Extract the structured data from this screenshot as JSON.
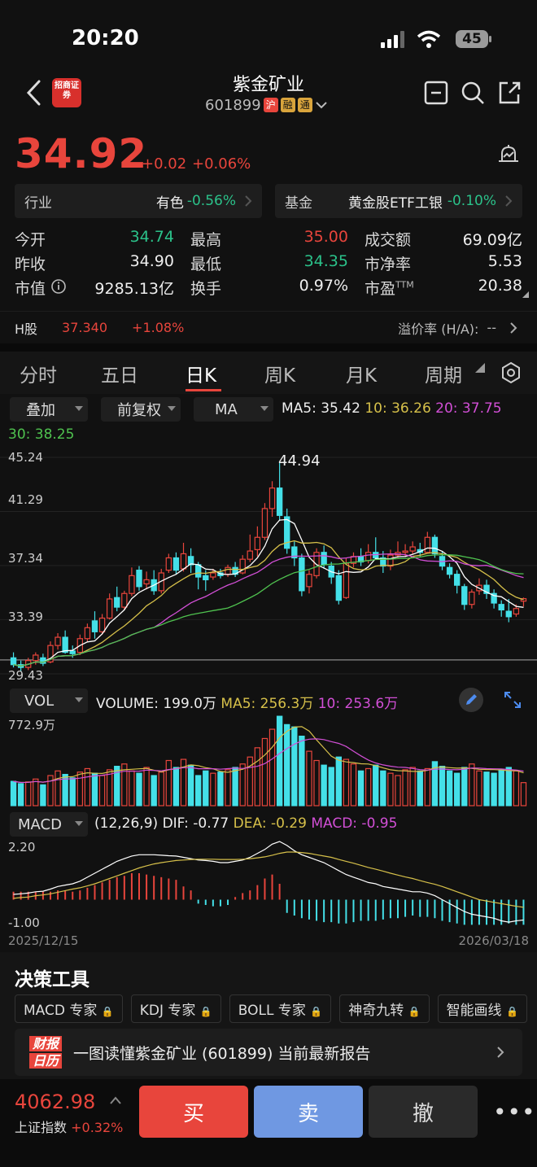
{
  "status_bar": {
    "time": "20:20",
    "battery": "45"
  },
  "nav": {
    "broker_logo": "招商证券",
    "stock_name": "紫金矿业",
    "stock_code": "601899",
    "tags": [
      "沪",
      "融",
      "通"
    ]
  },
  "quote": {
    "price": "34.92",
    "change": "+0.02",
    "change_pct": "+0.06%"
  },
  "industry": {
    "label": "行业",
    "name": "有色",
    "pct": "-0.56%"
  },
  "fund": {
    "label": "基金",
    "name": "黄金股ETF工银",
    "pct": "-0.10%"
  },
  "stats": {
    "open_label": "今开",
    "open": "34.74",
    "high_label": "最高",
    "high": "35.00",
    "turnover_amt_label": "成交额",
    "turnover_amt": "69.09亿",
    "prev_label": "昨收",
    "prev": "34.90",
    "low_label": "最低",
    "low": "34.35",
    "pb_label": "市净率",
    "pb": "5.53",
    "mcap_label": "市值",
    "mcap": "9285.13亿",
    "turnover_label": "换手",
    "turnover": "0.97%",
    "pe_label": "市盈",
    "pe_sup": "TTM",
    "pe": "20.38"
  },
  "hshare": {
    "label": "H股",
    "price": "37.340",
    "pct": "+1.08%",
    "premium_label": "溢价率 (H/A):",
    "premium": "--"
  },
  "tabs": [
    "分时",
    "五日",
    "日K",
    "周K",
    "月K",
    "周期"
  ],
  "controls": {
    "overlay": "叠加",
    "adjust": "前复权",
    "indicator": "MA"
  },
  "ma_legend": {
    "ma5": "MA5: 35.42",
    "ma10": "10: 36.26",
    "ma20": "20: 37.75",
    "ma30": "30: 38.25"
  },
  "price_axis": [
    "45.24",
    "41.29",
    "37.34",
    "33.39",
    "29.43"
  ],
  "peak_label": "44.94",
  "vol_panel": {
    "selector": "VOL",
    "volume": "VOLUME: 199.0万",
    "ma5": "MA5: 256.3万",
    "ma10": "10: 253.6万",
    "axis_max": "772.9万"
  },
  "macd_panel": {
    "selector": "MACD",
    "params": "(12,26,9)",
    "dif": "DIF: -0.77",
    "dea": "DEA: -0.29",
    "macd": "MACD: -0.95",
    "axis_top": "2.20",
    "axis_bottom": "-1.00"
  },
  "date_range": {
    "start": "2025/12/15",
    "end": "2026/03/18"
  },
  "tools": {
    "title": "决策工具",
    "items": [
      "MACD 专家",
      "KDJ 专家",
      "BOLL 专家",
      "神奇九转",
      "智能画线"
    ]
  },
  "report_banner": {
    "badge_line1": "财报",
    "badge_line2": "日历",
    "text": "一图读懂紫金矿业 (601899) 当前最新报告"
  },
  "index": {
    "value": "4062.98",
    "name": "上证指数",
    "pct": "+0.32%"
  },
  "actions": {
    "buy": "买",
    "sell": "卖",
    "cancel": "撤"
  },
  "colors": {
    "up": "#e8453c",
    "down": "#44e0e8",
    "ma5": "#ffffff",
    "ma10": "#d6c04a",
    "ma20": "#d24fd6",
    "ma30": "#4fc24f"
  },
  "chart_data": {
    "type": "candlestick",
    "ylim": [
      29.43,
      45.24
    ],
    "x_start": "2025/12/15",
    "x_end": "2026/03/18",
    "candles": [
      [
        30.6,
        30.1,
        31.0,
        29.9
      ],
      [
        30.1,
        29.9,
        30.4,
        29.6
      ],
      [
        29.9,
        30.4,
        30.6,
        29.7
      ],
      [
        30.4,
        30.8,
        31.0,
        30.1
      ],
      [
        30.6,
        30.2,
        30.9,
        30.0
      ],
      [
        30.3,
        31.5,
        31.8,
        30.2
      ],
      [
        31.5,
        32.1,
        32.4,
        31.2
      ],
      [
        32.1,
        31.0,
        32.6,
        30.9
      ],
      [
        31.1,
        30.9,
        31.5,
        30.6
      ],
      [
        31.0,
        32.0,
        32.3,
        30.8
      ],
      [
        32.0,
        32.8,
        33.1,
        31.8
      ],
      [
        33.3,
        32.5,
        34.0,
        32.0
      ],
      [
        32.5,
        33.5,
        33.8,
        32.3
      ],
      [
        33.5,
        34.9,
        35.3,
        33.4
      ],
      [
        35.0,
        34.3,
        35.8,
        34.0
      ],
      [
        34.3,
        35.3,
        35.5,
        34.1
      ],
      [
        35.3,
        36.6,
        37.2,
        35.1
      ],
      [
        37.0,
        35.8,
        37.3,
        35.5
      ],
      [
        36.0,
        36.3,
        36.9,
        35.6
      ],
      [
        36.3,
        35.5,
        37.0,
        35.2
      ],
      [
        35.5,
        36.8,
        37.1,
        35.3
      ],
      [
        37.0,
        37.9,
        38.2,
        36.8
      ],
      [
        37.9,
        37.0,
        38.3,
        36.7
      ],
      [
        37.1,
        38.2,
        39.0,
        36.9
      ],
      [
        38.0,
        37.4,
        38.6,
        36.8
      ],
      [
        37.4,
        36.5,
        37.6,
        35.6
      ],
      [
        36.6,
        36.3,
        37.0,
        35.5
      ],
      [
        36.5,
        36.8,
        37.1,
        36.3
      ],
      [
        36.8,
        36.6,
        37.1,
        36.4
      ],
      [
        36.7,
        37.2,
        37.4,
        36.5
      ],
      [
        37.2,
        36.7,
        37.6,
        36.5
      ],
      [
        36.8,
        37.8,
        38.1,
        36.7
      ],
      [
        37.8,
        38.4,
        39.6,
        37.6
      ],
      [
        38.5,
        39.4,
        40.2,
        38.0
      ],
      [
        39.4,
        41.5,
        41.9,
        39.2
      ],
      [
        41.5,
        43.0,
        43.5,
        40.9
      ],
      [
        43.0,
        41.0,
        44.94,
        40.6
      ],
      [
        40.9,
        38.6,
        41.5,
        38.2
      ],
      [
        38.7,
        37.9,
        39.1,
        37.3
      ],
      [
        37.9,
        35.5,
        38.2,
        35.1
      ],
      [
        35.8,
        36.7,
        37.0,
        35.3
      ],
      [
        36.6,
        38.3,
        38.6,
        36.4
      ],
      [
        38.3,
        37.4,
        38.8,
        37.1
      ],
      [
        37.3,
        36.5,
        37.6,
        36.0
      ],
      [
        36.6,
        34.8,
        37.0,
        34.5
      ],
      [
        35.0,
        37.5,
        37.9,
        34.9
      ],
      [
        37.5,
        38.0,
        38.3,
        37.2
      ],
      [
        38.0,
        37.6,
        38.6,
        37.3
      ],
      [
        37.7,
        38.3,
        38.9,
        37.5
      ],
      [
        38.3,
        37.9,
        39.4,
        37.8
      ],
      [
        37.9,
        37.3,
        38.4,
        36.8
      ],
      [
        37.3,
        38.1,
        38.5,
        37.0
      ],
      [
        38.1,
        38.3,
        39.1,
        37.9
      ],
      [
        38.3,
        38.4,
        38.9,
        38.0
      ],
      [
        38.4,
        38.7,
        39.1,
        38.2
      ],
      [
        38.5,
        38.3,
        39.0,
        38.0
      ],
      [
        38.3,
        39.4,
        39.8,
        38.2
      ],
      [
        39.4,
        38.2,
        39.6,
        37.9
      ],
      [
        38.0,
        37.3,
        38.4,
        37.0
      ],
      [
        37.2,
        36.7,
        37.5,
        36.4
      ],
      [
        36.7,
        35.9,
        37.0,
        35.3
      ],
      [
        35.8,
        34.5,
        36.0,
        34.1
      ],
      [
        34.5,
        35.4,
        35.6,
        34.2
      ],
      [
        35.5,
        35.9,
        36.4,
        35.2
      ],
      [
        35.9,
        35.3,
        36.3,
        34.9
      ],
      [
        35.3,
        34.6,
        35.6,
        34.2
      ],
      [
        34.5,
        34.1,
        34.8,
        33.6
      ],
      [
        34.0,
        33.6,
        34.9,
        33.2
      ],
      [
        33.8,
        34.2,
        34.5,
        33.6
      ],
      [
        34.74,
        34.92,
        35.0,
        34.35
      ]
    ],
    "volume_max": 772.9,
    "volumes": [
      210,
      190,
      205,
      230,
      180,
      260,
      300,
      270,
      240,
      290,
      320,
      280,
      260,
      310,
      340,
      360,
      300,
      280,
      330,
      260,
      290,
      390,
      330,
      400,
      350,
      260,
      300,
      280,
      290,
      310,
      330,
      360,
      420,
      500,
      580,
      660,
      772,
      700,
      680,
      600,
      470,
      390,
      350,
      330,
      420,
      400,
      360,
      300,
      320,
      350,
      300,
      280,
      260,
      310,
      330,
      300,
      320,
      380,
      340,
      300,
      280,
      330,
      360,
      300,
      290,
      280,
      310,
      330,
      300,
      199
    ],
    "macd_range": [
      -1.0,
      2.2
    ],
    "macd_hist": [
      0.3,
      0.3,
      0.3,
      0.3,
      0.3,
      0.3,
      0.35,
      0.35,
      0.3,
      0.35,
      0.45,
      0.55,
      0.65,
      0.75,
      0.85,
      0.9,
      1.0,
      1.0,
      0.95,
      0.9,
      0.85,
      0.8,
      0.75,
      0.5,
      0.35,
      -0.15,
      -0.2,
      -0.25,
      -0.25,
      -0.2,
      0.1,
      0.25,
      0.35,
      0.55,
      0.8,
      0.95,
      0.6,
      -0.5,
      -0.6,
      -0.7,
      -0.75,
      -0.8,
      -0.85,
      -0.85,
      -0.9,
      -0.9,
      -0.85,
      -0.8,
      -0.8,
      -0.8,
      -0.75,
      -0.7,
      -0.7,
      -0.65,
      -0.6,
      -0.65,
      -0.65,
      -0.7,
      -0.8,
      -0.85,
      -0.9,
      -0.95,
      -0.95,
      -0.95,
      -0.95,
      -0.95,
      -0.95,
      -0.9,
      -0.95,
      -0.95
    ],
    "macd_dif": [
      0.2,
      0.22,
      0.25,
      0.3,
      0.32,
      0.4,
      0.5,
      0.55,
      0.6,
      0.7,
      0.85,
      1.0,
      1.15,
      1.3,
      1.45,
      1.55,
      1.65,
      1.7,
      1.7,
      1.7,
      1.68,
      1.66,
      1.65,
      1.6,
      1.55,
      1.5,
      1.48,
      1.45,
      1.4,
      1.4,
      1.45,
      1.5,
      1.6,
      1.75,
      1.9,
      2.1,
      2.2,
      2.05,
      1.85,
      1.7,
      1.6,
      1.5,
      1.4,
      1.25,
      1.1,
      0.95,
      0.85,
      0.75,
      0.65,
      0.6,
      0.5,
      0.45,
      0.4,
      0.35,
      0.3,
      0.3,
      0.25,
      0.15,
      0.0,
      -0.15,
      -0.3,
      -0.45,
      -0.55,
      -0.6,
      -0.65,
      -0.7,
      -0.8,
      -0.85,
      -0.8,
      -0.77
    ],
    "macd_dea": [
      0.05,
      0.08,
      0.1,
      0.15,
      0.18,
      0.22,
      0.28,
      0.34,
      0.4,
      0.45,
      0.52,
      0.6,
      0.7,
      0.8,
      0.9,
      1.0,
      1.1,
      1.2,
      1.28,
      1.35,
      1.4,
      1.44,
      1.48,
      1.5,
      1.52,
      1.53,
      1.53,
      1.53,
      1.52,
      1.52,
      1.52,
      1.53,
      1.55,
      1.58,
      1.62,
      1.68,
      1.75,
      1.8,
      1.8,
      1.78,
      1.75,
      1.7,
      1.65,
      1.6,
      1.52,
      1.45,
      1.38,
      1.3,
      1.22,
      1.15,
      1.08,
      1.0,
      0.93,
      0.86,
      0.8,
      0.72,
      0.65,
      0.58,
      0.5,
      0.4,
      0.3,
      0.2,
      0.1,
      0.0,
      -0.05,
      -0.1,
      -0.15,
      -0.2,
      -0.25,
      -0.29
    ]
  }
}
